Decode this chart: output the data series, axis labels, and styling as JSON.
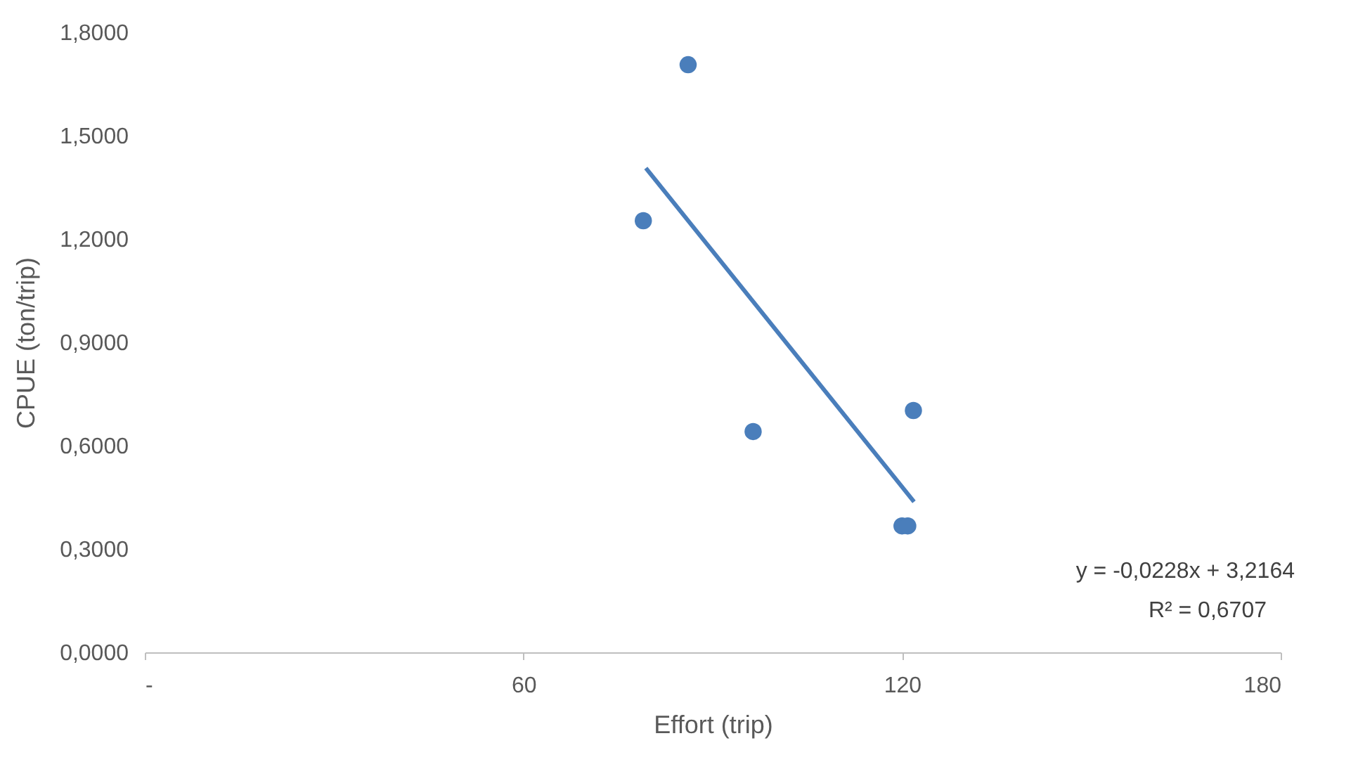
{
  "chart_data": {
    "type": "scatter",
    "xlabel": "Effort (trip)",
    "ylabel": "CPUE (ton/trip)",
    "xlim": [
      0,
      180
    ],
    "xticks": [
      {
        "value": 0,
        "label": "-"
      },
      60,
      120,
      180
    ],
    "ylim": [
      0,
      1.8
    ],
    "yticks": [
      {
        "value": 0,
        "label": "0,0000"
      },
      {
        "value": 0.3,
        "label": "0,3000"
      },
      {
        "value": 0.6,
        "label": "0,6000"
      },
      {
        "value": 0.9,
        "label": "0,9000"
      },
      {
        "value": 1.2,
        "label": "1,2000"
      },
      {
        "value": 1.5,
        "label": "1,5000"
      },
      {
        "value": 1.8,
        "label": "1,8000"
      }
    ],
    "grid": false,
    "series": [
      {
        "color": "#4a7ebb",
        "marker": "circle",
        "x": [
          86.1,
          79.0,
          96.4,
          121.8,
          120.0,
          120.9
        ],
        "values": [
          1.706,
          1.253,
          0.641,
          0.702,
          0.367,
          0.367
        ]
      },
      {
        "type": "line",
        "color": "#4a7ebb",
        "line_style": "solid",
        "x": [
          79.4,
          121.9
        ],
        "values": [
          1.406,
          0.437
        ]
      }
    ],
    "annotations": [
      "y = -0,0228x + 3,2164",
      "R² = 0,6707"
    ]
  }
}
